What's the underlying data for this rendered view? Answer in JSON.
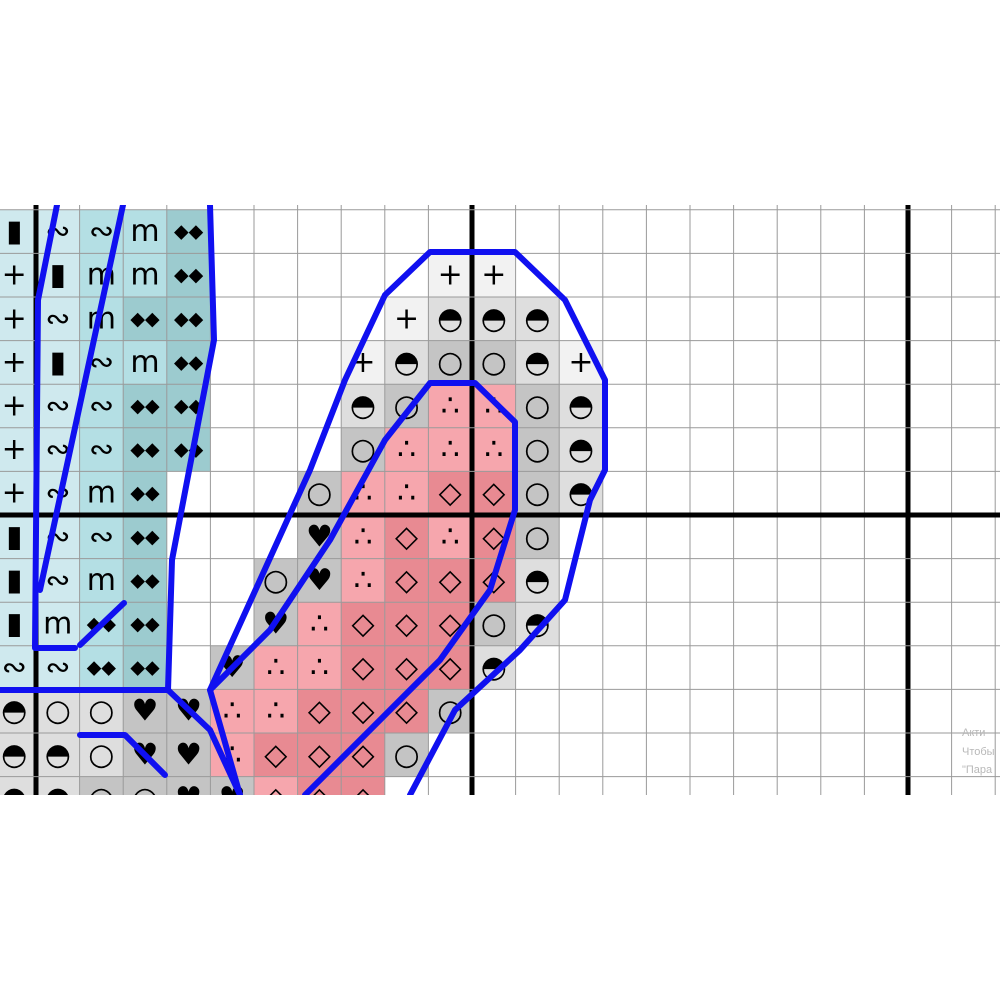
{
  "pattern": {
    "rows": [
      {
        "cells": [
          "▮",
          "∾",
          "∾",
          "m",
          "◆◆"
        ],
        "fills": [
          "#cfe9ee",
          "#cfe9ee",
          "#b4dfe4",
          "#b4dfe4",
          "#9ccbcf"
        ]
      },
      {
        "cells": [
          "+",
          "▮",
          "m",
          "m",
          "◆◆",
          null,
          null,
          null,
          null,
          null,
          "+",
          "+"
        ],
        "fills": [
          "#cfe9ee",
          "#cfe9ee",
          "#b4dfe4",
          "#b4dfe4",
          "#9ccbcf",
          null,
          null,
          null,
          null,
          null,
          "#f2f2f2",
          "#f2f2f2"
        ]
      },
      {
        "cells": [
          "+",
          "∾",
          "m",
          "◆◆",
          "◆◆",
          null,
          null,
          null,
          null,
          "+",
          "◓",
          "◓",
          "◓"
        ],
        "fills": [
          "#cfe9ee",
          "#cfe9ee",
          "#b4dfe4",
          "#9ccbcf",
          "#9ccbcf",
          null,
          null,
          null,
          null,
          "#f2f2f2",
          "#dedede",
          "#dedede",
          "#dedede"
        ]
      },
      {
        "cells": [
          "+",
          "▮",
          "∾",
          "m",
          "◆◆",
          null,
          null,
          null,
          "+",
          "◓",
          "○",
          "○",
          "◓",
          "+"
        ],
        "fills": [
          "#cfe9ee",
          "#cfe9ee",
          "#b4dfe4",
          "#b4dfe4",
          "#9ccbcf",
          null,
          null,
          null,
          "#f2f2f2",
          "#dedede",
          "#c4c4c4",
          "#c4c4c4",
          "#dedede",
          "#f2f2f2"
        ]
      },
      {
        "cells": [
          "+",
          "∾",
          "∾",
          "◆◆",
          "◆◆",
          null,
          null,
          null,
          "◓",
          "○",
          "∴",
          "∴",
          "○",
          "◓"
        ],
        "fills": [
          "#cfe9ee",
          "#cfe9ee",
          "#b4dfe4",
          "#9ccbcf",
          "#9ccbcf",
          null,
          null,
          null,
          "#dedede",
          "#c4c4c4",
          "#f6a6ad",
          "#f6a6ad",
          "#c4c4c4",
          "#dedede"
        ]
      },
      {
        "cells": [
          "+",
          "∾",
          "∾",
          "◆◆",
          "◆◆",
          null,
          null,
          null,
          "○",
          "∴",
          "∴",
          "∴",
          "○",
          "◓"
        ],
        "fills": [
          "#cfe9ee",
          "#cfe9ee",
          "#b4dfe4",
          "#9ccbcf",
          "#9ccbcf",
          null,
          null,
          null,
          "#c4c4c4",
          "#f6a6ad",
          "#f6a6ad",
          "#f6a6ad",
          "#c4c4c4",
          "#dedede"
        ]
      },
      {
        "cells": [
          "+",
          "∾",
          "m",
          "◆◆",
          null,
          null,
          null,
          "○",
          "∴",
          "∴",
          "◇",
          "◇",
          "○",
          "◓"
        ],
        "fills": [
          "#cfe9ee",
          "#cfe9ee",
          "#b4dfe4",
          "#9ccbcf",
          null,
          null,
          null,
          "#c4c4c4",
          "#f6a6ad",
          "#f6a6ad",
          "#e88a92",
          "#e88a92",
          "#c4c4c4",
          "#dedede"
        ]
      },
      {
        "cells": [
          "▮",
          "∾",
          "∾",
          "◆◆",
          null,
          null,
          null,
          "♥",
          "∴",
          "◇",
          "∴",
          "◇",
          "○"
        ],
        "fills": [
          "#cfe9ee",
          "#cfe9ee",
          "#b4dfe4",
          "#9ccbcf",
          null,
          null,
          null,
          "#c4c4c4",
          "#f6a6ad",
          "#e88a92",
          "#f6a6ad",
          "#e88a92",
          "#c4c4c4"
        ]
      },
      {
        "cells": [
          "▮",
          "∾",
          "m",
          "◆◆",
          null,
          null,
          "○",
          "♥",
          "∴",
          "◇",
          "◇",
          "◇",
          "◓"
        ],
        "fills": [
          "#cfe9ee",
          "#cfe9ee",
          "#b4dfe4",
          "#9ccbcf",
          null,
          null,
          "#c4c4c4",
          "#c4c4c4",
          "#f6a6ad",
          "#e88a92",
          "#e88a92",
          "#e88a92",
          "#dedede"
        ]
      },
      {
        "cells": [
          "▮",
          "m",
          "◆◆",
          "◆◆",
          null,
          null,
          "♥",
          "∴",
          "◇",
          "◇",
          "◇",
          "○",
          "◓"
        ],
        "fills": [
          "#cfe9ee",
          "#cfe9ee",
          "#b4dfe4",
          "#9ccbcf",
          null,
          null,
          "#c4c4c4",
          "#f6a6ad",
          "#e88a92",
          "#e88a92",
          "#e88a92",
          "#c4c4c4",
          "#dedede"
        ]
      },
      {
        "cells": [
          "∾",
          "∾",
          "◆◆",
          "◆◆",
          null,
          "♥",
          "∴",
          "∴",
          "◇",
          "◇",
          "◇",
          "◓"
        ],
        "fills": [
          "#cfe9ee",
          "#cfe9ee",
          "#b4dfe4",
          "#9ccbcf",
          null,
          "#c4c4c4",
          "#f6a6ad",
          "#f6a6ad",
          "#e88a92",
          "#e88a92",
          "#e88a92",
          "#dedede"
        ]
      },
      {
        "cells": [
          "◓",
          "○",
          "○",
          "♥",
          "♥",
          "∴",
          "∴",
          "◇",
          "◇",
          "◇",
          "○"
        ],
        "fills": [
          "#dedede",
          "#dedede",
          "#dedede",
          "#c4c4c4",
          "#c4c4c4",
          "#f6a6ad",
          "#f6a6ad",
          "#e88a92",
          "#e88a92",
          "#e88a92",
          "#c4c4c4"
        ]
      },
      {
        "cells": [
          "◓",
          "◓",
          "○",
          "♥",
          "♥",
          "∴",
          "◇",
          "◇",
          "◇",
          "○"
        ],
        "fills": [
          "#dedede",
          "#dedede",
          "#dedede",
          "#c4c4c4",
          "#c4c4c4",
          "#f6a6ad",
          "#e88a92",
          "#e88a92",
          "#e88a92",
          "#c4c4c4"
        ]
      },
      {
        "cells": [
          "◓",
          "◓",
          "○",
          "○",
          "♥",
          "♥",
          "◇",
          "◇",
          "◇"
        ],
        "fills": [
          "#dedede",
          "#dedede",
          "#c4c4c4",
          "#c4c4c4",
          "#c4c4c4",
          "#c4c4c4",
          "#f6a6ad",
          "#e88a92",
          "#e88a92"
        ]
      }
    ]
  },
  "watermark": {
    "lines": [
      "Акти",
      "Чтобы",
      "\"Пара"
    ]
  }
}
